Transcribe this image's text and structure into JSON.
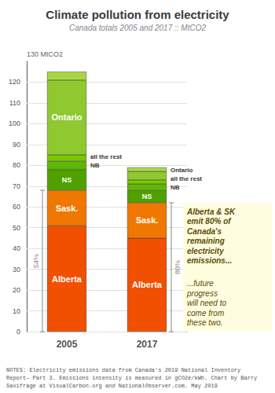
{
  "chart_data": {
    "type": "bar",
    "stacked": true,
    "title": "Climate pollution from electricity",
    "subtitle": "Canada totals 2005 and 2017 :: MtCO2",
    "notes": "NOTES: Electricity emissions data from Canada's 2019 National Inventory\nReport– Part 3. Emissions intensity is measured in gCO2e/kWh. Chart by Barry\nSaxifrage at VisualCarbon.org and NationalObserver.com. May 2019",
    "categories": [
      "2005",
      "2017"
    ],
    "series": [
      {
        "name": "Alberta",
        "color": "#F05000",
        "values": [
          51,
          45
        ]
      },
      {
        "name": "Sask.",
        "color": "#F07800",
        "values": [
          17,
          17
        ]
      },
      {
        "name": "NS",
        "color": "#50A000",
        "values": [
          10,
          6
        ]
      },
      {
        "name": "NB",
        "color": "#60B800",
        "values": [
          4,
          3
        ]
      },
      {
        "name": "all the rest",
        "color": "#78C800",
        "values": [
          3,
          2
        ]
      },
      {
        "name": "Ontario",
        "color": "#90C830",
        "values": [
          36,
          4
        ]
      },
      {
        "name": null,
        "color": "#A8D840",
        "values": [
          4,
          2
        ]
      }
    ],
    "ylim": [
      0,
      130
    ],
    "yticks": [
      0,
      10,
      20,
      30,
      40,
      50,
      60,
      70,
      80,
      90,
      100,
      110,
      120
    ],
    "grid": true,
    "data_labels": false,
    "annotations": [
      "130 MtCO2"
    ],
    "brackets": [
      {
        "category": "2005",
        "value": 68,
        "label": "54%"
      },
      {
        "category": "2017",
        "value": 62,
        "label": "80%"
      }
    ],
    "callout": {
      "texts": [
        "Alberta & SK\nemit 80% of\nCanada's\nremaining\nelectricity\nemissions...",
        "...future\nprogress\nwill need to\ncome from\nthese two."
      ],
      "color": "#FFFDE0",
      "text_color": "#5C4A00"
    }
  }
}
